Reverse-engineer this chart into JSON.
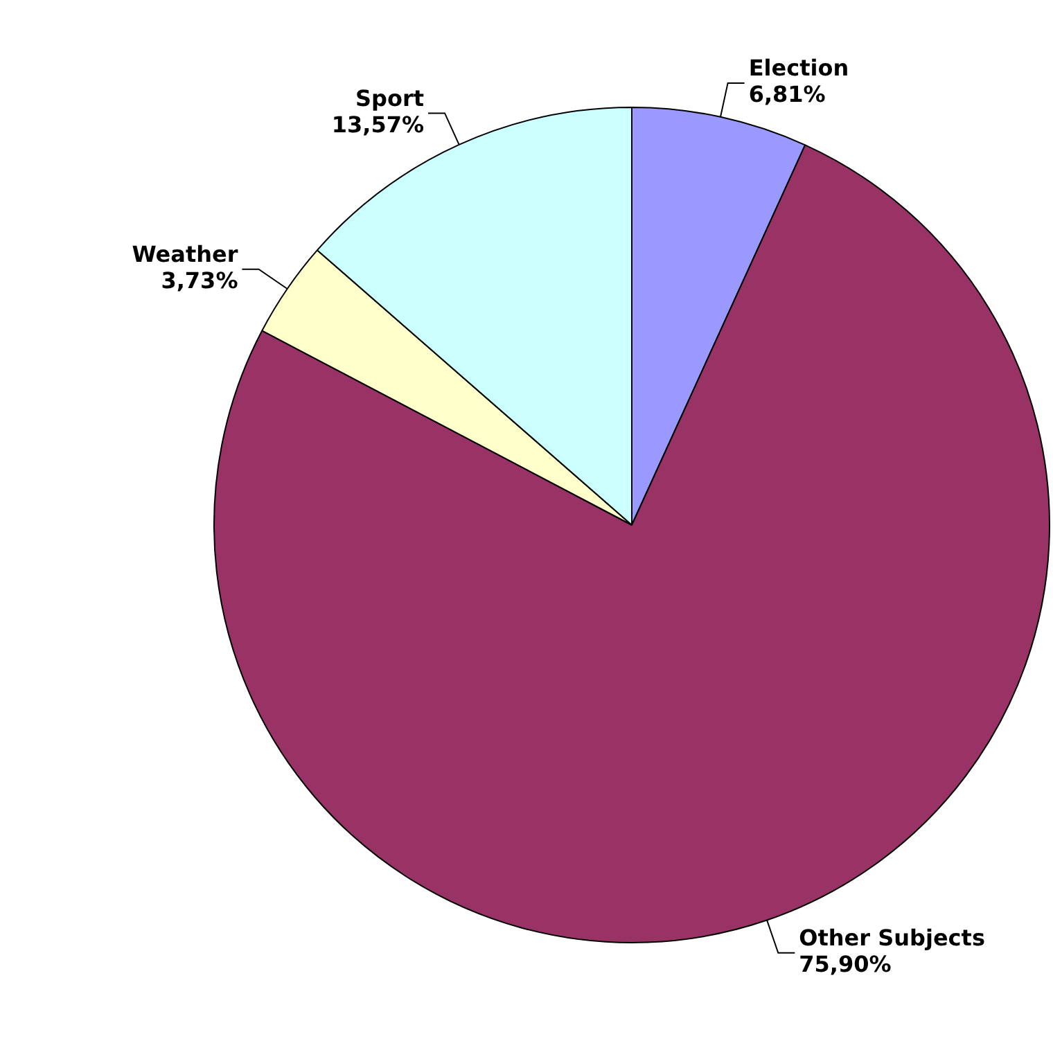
{
  "chart_data": {
    "type": "pie",
    "categories": [
      "Election",
      "Other Subjects",
      "Weather",
      "Sport"
    ],
    "values": [
      6.81,
      75.9,
      3.73,
      13.57
    ],
    "colors": [
      "#9999ff",
      "#993366",
      "#ffffcc",
      "#ccffff"
    ],
    "value_labels": [
      "6,81%",
      "75,90%",
      "3,73%",
      "13,57%"
    ],
    "legend": false
  }
}
